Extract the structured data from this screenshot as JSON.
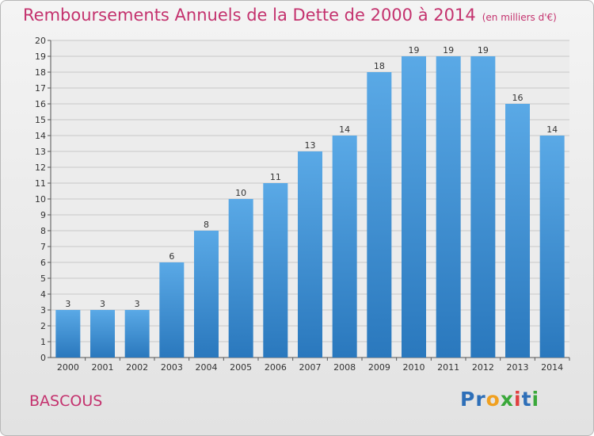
{
  "header": {
    "title": "Remboursements Annuels de la Dette de 2000 à 2014",
    "unit": "(en milliers d'€)"
  },
  "footer": {
    "commune": "BASCOUS",
    "logo": {
      "parts": [
        "Pr",
        "o",
        "x",
        "i",
        "t",
        "i"
      ],
      "colors": [
        "#2e6fb8",
        "#f0a020",
        "#3aa83a",
        "#e04040",
        "#2e6fb8",
        "#3aa83a"
      ]
    }
  },
  "chart_data": {
    "type": "bar",
    "categories": [
      "2000",
      "2001",
      "2002",
      "2003",
      "2004",
      "2005",
      "2006",
      "2007",
      "2008",
      "2009",
      "2010",
      "2011",
      "2012",
      "2013",
      "2014"
    ],
    "values": [
      3,
      3,
      3,
      6,
      8,
      10,
      11,
      13,
      14,
      18,
      19,
      19,
      19,
      16,
      14
    ],
    "ylim": [
      0,
      20
    ],
    "yticks": [
      0,
      1,
      2,
      3,
      4,
      5,
      6,
      7,
      8,
      9,
      10,
      11,
      12,
      13,
      14,
      15,
      16,
      17,
      18,
      19,
      20
    ],
    "grid": true,
    "colors": {
      "bar_light": "#5aa9e6",
      "bar_dark": "#2a78bd",
      "grid": "#c8c8c8"
    }
  }
}
